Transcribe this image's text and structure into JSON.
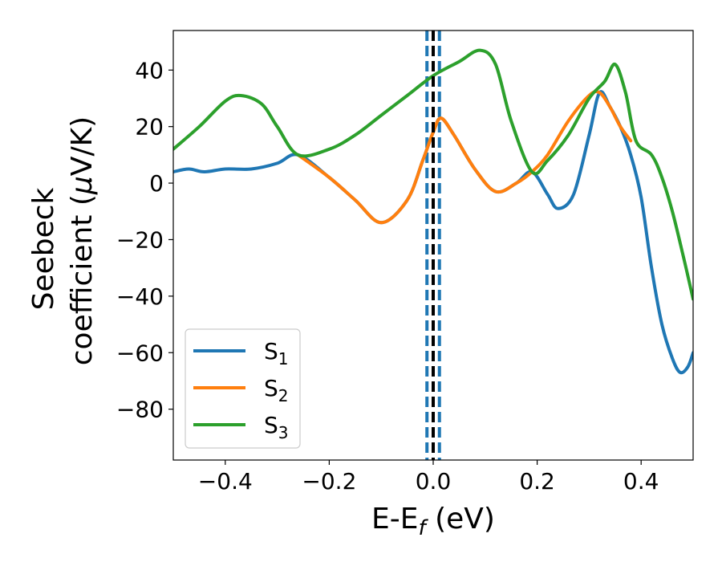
{
  "chart_data": {
    "type": "line",
    "xlabel": {
      "main": "E-E",
      "sub": "f",
      "rest": " (eV)"
    },
    "ylabel": {
      "line1": "Seebeck",
      "line2_pre": "coefficient  (",
      "mu": "μ",
      "line2_post": "V/K)"
    },
    "xlim": [
      -0.5,
      0.5
    ],
    "ylim": [
      -98,
      54
    ],
    "xticks": [
      -0.4,
      -0.2,
      0.0,
      0.2,
      0.4
    ],
    "xtick_labels": [
      "−0.4",
      "−0.2",
      "0.0",
      "0.2",
      "0.4"
    ],
    "yticks": [
      40,
      20,
      0,
      -20,
      -40,
      -60,
      -80
    ],
    "ytick_labels": [
      "40",
      "20",
      "0",
      "−20",
      "−40",
      "−60",
      "−80"
    ],
    "grid": false,
    "legend_position": "lower-left",
    "vlines": [
      {
        "x": 0.0,
        "color": "#000000",
        "style": "dashed"
      },
      {
        "x": -0.012,
        "color": "#1f77b4",
        "style": "dashed"
      },
      {
        "x": 0.012,
        "color": "#1f77b4",
        "style": "dashed"
      }
    ],
    "series": [
      {
        "name": "S",
        "sub": "1",
        "color": "#1f77b4",
        "x": [
          -0.5,
          -0.47,
          -0.44,
          -0.4,
          -0.35,
          -0.3,
          -0.26,
          -0.2,
          -0.15,
          -0.1,
          -0.05,
          -0.02,
          0.0,
          0.015,
          0.04,
          0.08,
          0.12,
          0.16,
          0.19,
          0.22,
          0.24,
          0.27,
          0.3,
          0.32,
          0.34,
          0.36,
          0.38,
          0.4,
          0.42,
          0.44,
          0.46,
          0.475,
          0.49,
          0.5
        ],
        "y": [
          4,
          5,
          4,
          5,
          5,
          7,
          10,
          2,
          -6,
          -14,
          -6,
          8,
          18,
          23,
          17,
          5,
          -3,
          0,
          4,
          -4,
          -9,
          -4,
          17,
          32,
          27,
          20,
          10,
          -5,
          -30,
          -50,
          -62,
          -67,
          -65,
          -60
        ]
      },
      {
        "name": "S",
        "sub": "2",
        "color": "#ff7f0e",
        "x": [
          -0.26,
          -0.2,
          -0.15,
          -0.1,
          -0.05,
          -0.02,
          0.0,
          0.015,
          0.04,
          0.08,
          0.12,
          0.16,
          0.19,
          0.22,
          0.26,
          0.3,
          0.32,
          0.34,
          0.36,
          0.38
        ],
        "y": [
          10,
          2,
          -6,
          -14,
          -6,
          8,
          18,
          23,
          17,
          5,
          -3,
          0,
          4,
          10,
          22,
          31,
          32,
          27,
          20,
          15
        ]
      },
      {
        "name": "S",
        "sub": "3",
        "color": "#2ca02c",
        "x": [
          -0.5,
          -0.45,
          -0.4,
          -0.37,
          -0.33,
          -0.3,
          -0.26,
          -0.2,
          -0.15,
          -0.1,
          -0.05,
          0.0,
          0.05,
          0.09,
          0.12,
          0.15,
          0.19,
          0.22,
          0.26,
          0.3,
          0.33,
          0.35,
          0.37,
          0.39,
          0.42,
          0.44,
          0.46,
          0.48,
          0.5
        ],
        "y": [
          12,
          20,
          29,
          31,
          28,
          20,
          10,
          12,
          17,
          24,
          31,
          38,
          43,
          47,
          42,
          22,
          4,
          8,
          17,
          30,
          36,
          42,
          32,
          15,
          10,
          2,
          -10,
          -25,
          -41
        ]
      }
    ]
  }
}
